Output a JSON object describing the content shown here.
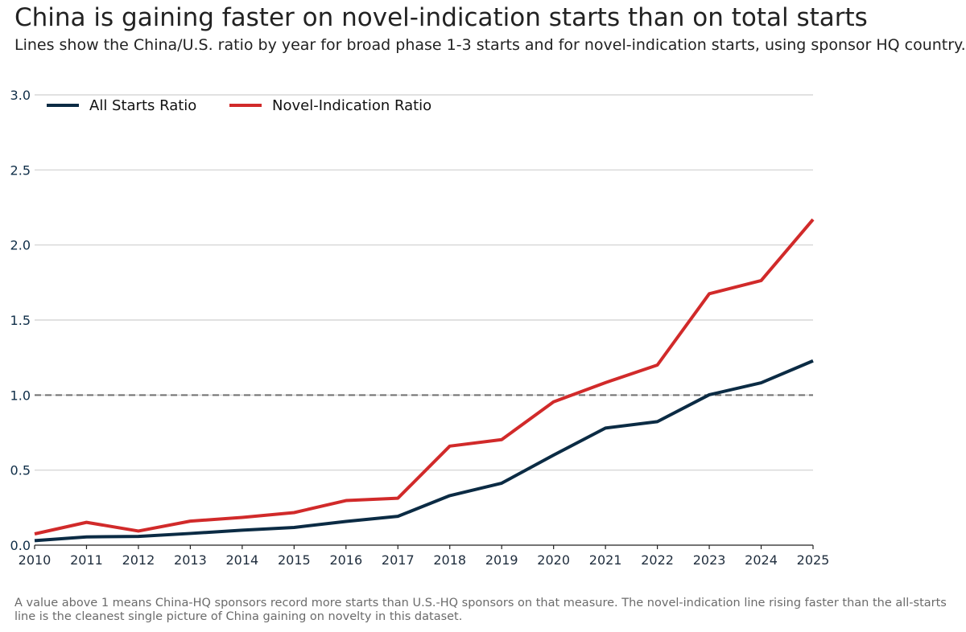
{
  "title": "China is gaining faster on novel-indication starts than on total starts",
  "subtitle": "Lines show the China/U.S. ratio by year for broad phase 1-3 starts and for novel-indication starts, using sponsor HQ country.",
  "footnote": "A value above 1 means China-HQ sponsors record more starts than U.S.-HQ sponsors on that measure. The novel-indication line rising faster than the all-starts line is the cleanest single picture of China gaining on novelty in this dataset.",
  "chart_data": {
    "type": "line",
    "x": [
      2010,
      2011,
      2012,
      2013,
      2014,
      2015,
      2016,
      2017,
      2018,
      2019,
      2020,
      2021,
      2022,
      2023,
      2024,
      2025
    ],
    "xlim": [
      2010,
      2025
    ],
    "ylim": [
      0,
      3.0
    ],
    "yticks": [
      "0.0",
      "0.5",
      "1.0",
      "1.5",
      "2.0",
      "2.5",
      "3.0"
    ],
    "xticks": [
      "2010",
      "2011",
      "2012",
      "2013",
      "2014",
      "2015",
      "2016",
      "2017",
      "2018",
      "2019",
      "2020",
      "2021",
      "2022",
      "2023",
      "2024",
      "2025"
    ],
    "reference_line": 1.0,
    "grid": true,
    "legend_position": "top-left",
    "series": [
      {
        "name": "All Starts Ratio",
        "color": "#0b2b44",
        "values": [
          0.03,
          0.055,
          0.058,
          0.078,
          0.1,
          0.118,
          0.158,
          0.192,
          0.33,
          0.413,
          0.6,
          0.78,
          0.823,
          1.002,
          1.082,
          1.228
        ]
      },
      {
        "name": "Novel-Indication Ratio",
        "color": "#d12a2a",
        "values": [
          0.075,
          0.152,
          0.094,
          0.16,
          0.185,
          0.217,
          0.297,
          0.313,
          0.66,
          0.703,
          0.955,
          1.083,
          1.2,
          1.675,
          1.763,
          2.17
        ]
      }
    ]
  }
}
